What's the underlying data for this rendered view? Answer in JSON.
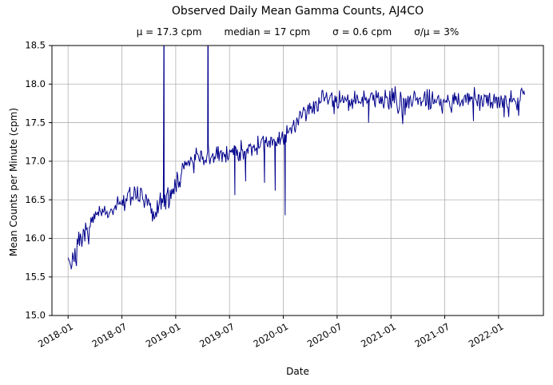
{
  "chart_data": {
    "type": "line",
    "title": "Observed Daily Mean Gamma Counts, AJ4CO",
    "stats": [
      "μ = 17.3 cpm",
      "median = 17 cpm",
      "σ = 0.6 cpm",
      "σ/μ = 3%"
    ],
    "xlabel": "Date",
    "ylabel": "Mean Counts per Minute (cpm)",
    "ylim": [
      15.0,
      18.5
    ],
    "ytick_labels": [
      "15.0",
      "15.5",
      "16.0",
      "16.5",
      "17.0",
      "17.5",
      "18.0",
      "18.5"
    ],
    "xticks": [
      {
        "label": "2018-01",
        "month": 0
      },
      {
        "label": "2018-07",
        "month": 6
      },
      {
        "label": "2019-01",
        "month": 12
      },
      {
        "label": "2019-07",
        "month": 18
      },
      {
        "label": "2020-01",
        "month": 24
      },
      {
        "label": "2020-07",
        "month": 30
      },
      {
        "label": "2021-01",
        "month": 36
      },
      {
        "label": "2021-07",
        "month": 42
      },
      {
        "label": "2022-01",
        "month": 48
      }
    ],
    "xlim_months": [
      -1.8,
      53.0
    ],
    "x_start_month": 0,
    "x_end_month": 51,
    "grid": true,
    "legend": null,
    "line_color": "#00008b",
    "grid_color": "#b0b0b0",
    "frame_color": "#000000",
    "trend_anchors_month_value": [
      [
        0,
        15.78
      ],
      [
        0.4,
        15.68
      ],
      [
        0.8,
        15.82
      ],
      [
        1.3,
        15.95
      ],
      [
        2,
        16.06
      ],
      [
        2.6,
        16.18
      ],
      [
        3.2,
        16.28
      ],
      [
        4,
        16.33
      ],
      [
        5,
        16.38
      ],
      [
        6,
        16.47
      ],
      [
        7,
        16.55
      ],
      [
        7.6,
        16.6
      ],
      [
        8.4,
        16.5
      ],
      [
        9,
        16.4
      ],
      [
        9.6,
        16.33
      ],
      [
        10.2,
        16.45
      ],
      [
        11,
        16.52
      ],
      [
        11.6,
        16.62
      ],
      [
        12.2,
        16.72
      ],
      [
        12.8,
        16.9
      ],
      [
        13.4,
        17.0
      ],
      [
        14.2,
        17.02
      ],
      [
        15.2,
        17.04
      ],
      [
        16,
        17.05
      ],
      [
        17,
        17.08
      ],
      [
        18,
        17.1
      ],
      [
        19,
        17.13
      ],
      [
        20,
        17.17
      ],
      [
        21,
        17.2
      ],
      [
        22,
        17.24
      ],
      [
        23,
        17.28
      ],
      [
        24,
        17.32
      ],
      [
        25,
        17.42
      ],
      [
        25.8,
        17.56
      ],
      [
        26.6,
        17.68
      ],
      [
        27.4,
        17.76
      ],
      [
        28.5,
        17.8
      ],
      [
        30,
        17.82
      ],
      [
        32,
        17.78
      ],
      [
        34,
        17.82
      ],
      [
        36,
        17.78
      ],
      [
        38,
        17.81
      ],
      [
        40,
        17.82
      ],
      [
        42,
        17.78
      ],
      [
        44,
        17.8
      ],
      [
        46,
        17.78
      ],
      [
        48,
        17.8
      ],
      [
        50,
        17.78
      ],
      [
        51,
        17.88
      ]
    ],
    "upward_spikes_month_value": [
      [
        10.7,
        19.5
      ],
      [
        15.6,
        19.5
      ]
    ],
    "downward_dips_month_value": [
      [
        0.35,
        15.6
      ],
      [
        9.4,
        16.22
      ],
      [
        18.6,
        16.56
      ],
      [
        19.8,
        16.74
      ],
      [
        21.9,
        16.72
      ],
      [
        23.1,
        16.62
      ],
      [
        24.2,
        16.3
      ],
      [
        33.5,
        17.5
      ],
      [
        45.2,
        17.52
      ]
    ],
    "noise": {
      "sd": 0.07,
      "tail_prob": 0.05,
      "tail_max": 0.22,
      "seed": 7,
      "step_months": 0.085
    }
  }
}
